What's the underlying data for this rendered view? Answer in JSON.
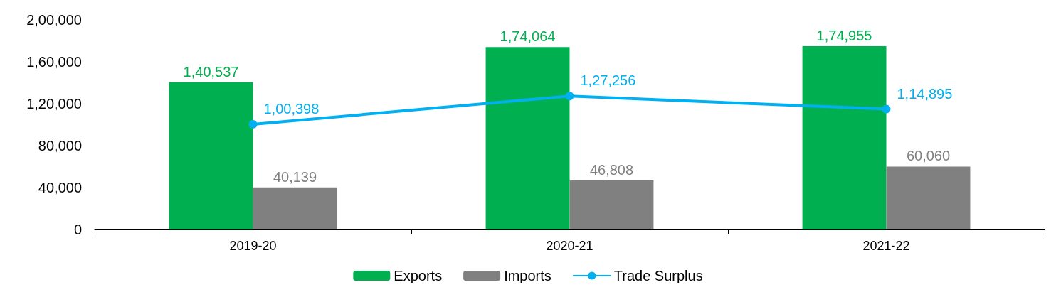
{
  "chart_data": {
    "type": "bar",
    "categories": [
      "2019-20",
      "2020-21",
      "2021-22"
    ],
    "series": [
      {
        "name": "Exports",
        "color": "#00b050",
        "values": [
          140537,
          174064,
          174955
        ],
        "value_labels": [
          "1,40,537",
          "1,74,064",
          "1,74,955"
        ]
      },
      {
        "name": "Imports",
        "color": "#808080",
        "values": [
          40139,
          46808,
          60060
        ],
        "value_labels": [
          "40,139",
          "46,808",
          "60,060"
        ]
      },
      {
        "name": "Trade Surplus",
        "type": "line",
        "color": "#00b0f0",
        "values": [
          100398,
          127256,
          114895
        ],
        "value_labels": [
          "1,00,398",
          "1,27,256",
          "1,14,895"
        ]
      }
    ],
    "ylim": [
      0,
      200000
    ],
    "yticks": [
      0,
      {
        "value": 40000,
        "label": "40,000"
      },
      {
        "value": 80000,
        "label": "80,000"
      },
      {
        "value": 120000,
        "label": "1,20,000"
      },
      {
        "value": 160000,
        "label": "1,60,000"
      },
      {
        "value": 200000,
        "label": "2,00,000"
      }
    ],
    "grid": false,
    "legend": "bottom",
    "marker": "circle",
    "line_style": "solid"
  }
}
